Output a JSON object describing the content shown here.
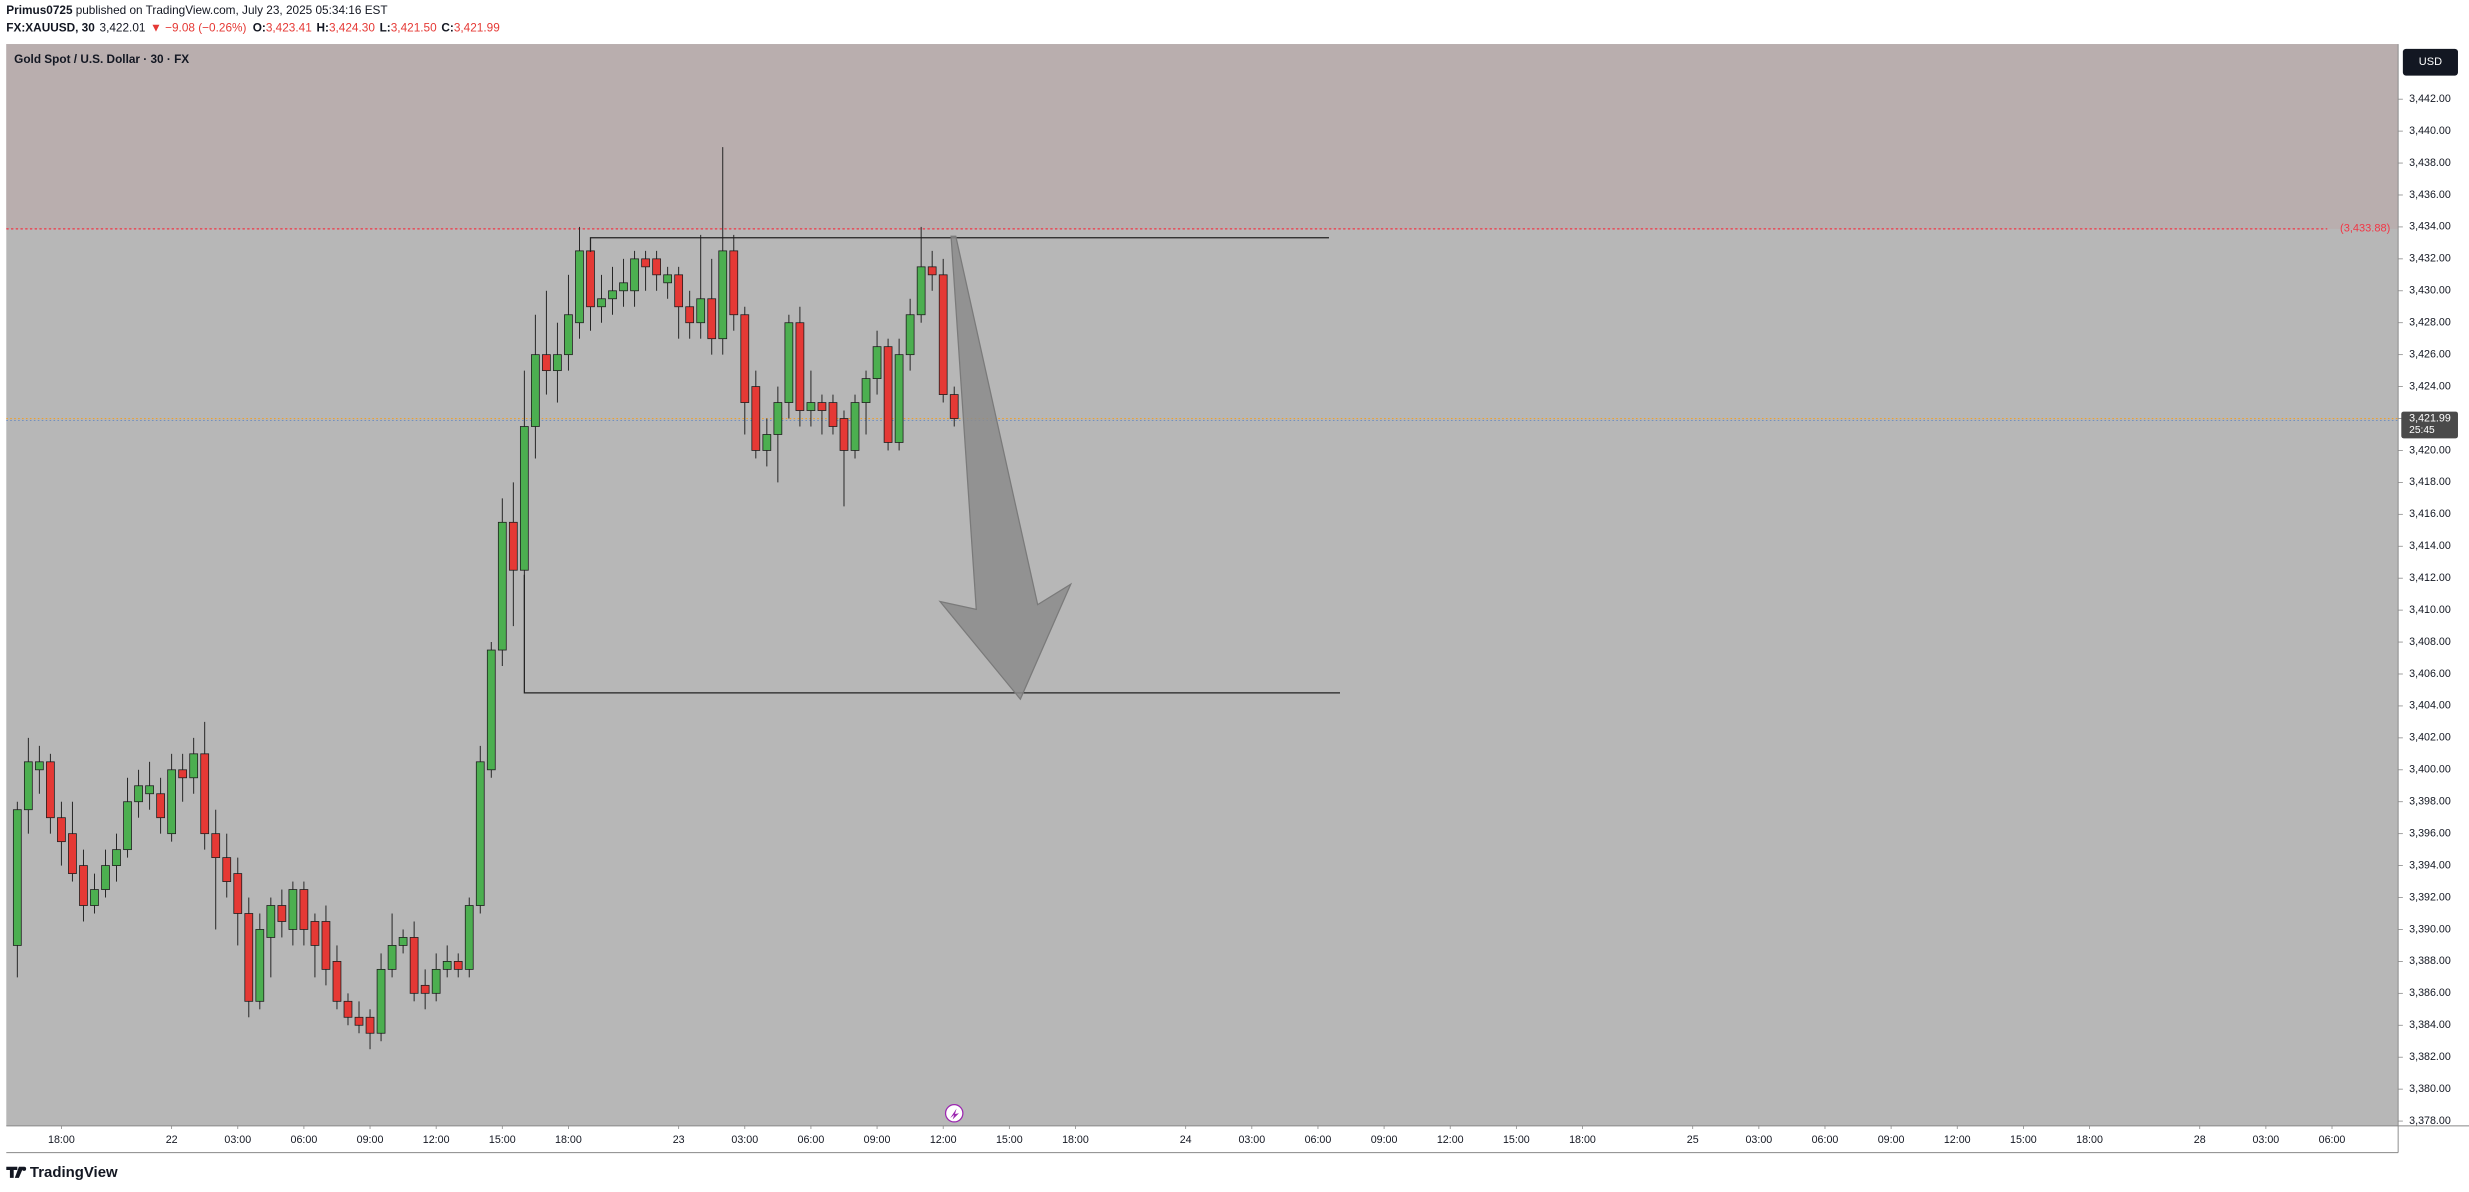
{
  "header": {
    "publisher": "Primus0725",
    "published": "published on TradingView.com, July 23, 2025 05:34:16 EST",
    "symbol": "FX:XAUUSD, 30",
    "last": "3,422.01",
    "change": "▼ −9.08 (−0.26%)",
    "ohlc": [
      {
        "key": "O:",
        "value": "3,423.41"
      },
      {
        "key": "H:",
        "value": "3,424.30"
      },
      {
        "key": "L:",
        "value": "3,421.50"
      },
      {
        "key": "C:",
        "value": "3,421.99"
      }
    ]
  },
  "footer": {
    "brand": "TradingView"
  },
  "chart_data": {
    "type": "candlestick",
    "title": "Gold Spot / U.S. Dollar · 30 · FX",
    "currency": "USD",
    "x": [
      0,
      1,
      2,
      3,
      4,
      5,
      6,
      7,
      8,
      9,
      10,
      11,
      12,
      13,
      14,
      15,
      16,
      17,
      18,
      19,
      20,
      21,
      22,
      23,
      24,
      25,
      26,
      27,
      28,
      29,
      30,
      31,
      32,
      33,
      34,
      35,
      36,
      37,
      38,
      39,
      40,
      41,
      42,
      43,
      44,
      45,
      46,
      47,
      48,
      49,
      50,
      51,
      52,
      53,
      54,
      55,
      56,
      57,
      58,
      59,
      60,
      61,
      62,
      63,
      64,
      65,
      66,
      67,
      68,
      69,
      70,
      71,
      72,
      73,
      74,
      75,
      76,
      77,
      78,
      79,
      80,
      81,
      82,
      83,
      84,
      85
    ],
    "open": [
      3389,
      3397.5,
      3400,
      3400.5,
      3397,
      3396,
      3394,
      3391.5,
      3392.5,
      3394,
      3395,
      3398,
      3398.5,
      3398.5,
      3396,
      3400,
      3399.5,
      3401,
      3396,
      3394.5,
      3393.5,
      3391,
      3385.5,
      3389.5,
      3391.5,
      3390,
      3392.5,
      3390.5,
      3390.5,
      3388,
      3385.5,
      3384.5,
      3384.5,
      3383.5,
      3387.5,
      3389,
      3389.5,
      3386.5,
      3386,
      3387.5,
      3388,
      3387.5,
      3391.5,
      3400,
      3407.5,
      3415.5,
      3412.5,
      3421.5,
      3426,
      3425,
      3426,
      3428,
      3432.5,
      3429,
      3429.5,
      3430,
      3430,
      3432,
      3432,
      3430.5,
      3431,
      3429,
      3428,
      3429.5,
      3427,
      3432.5,
      3428.5,
      3424,
      3420,
      3421,
      3423,
      3428,
      3422.5,
      3423,
      3423,
      3422,
      3420,
      3423,
      3424.5,
      3426.5,
      3420.5,
      3426,
      3428.5,
      3431.5,
      3431,
      3423.5
    ],
    "high": [
      3398,
      3402,
      3401.5,
      3401,
      3398,
      3398,
      3395,
      3393.5,
      3395,
      3396,
      3399.5,
      3400,
      3400.5,
      3399.5,
      3401,
      3401,
      3402,
      3403,
      3397.5,
      3396,
      3394.5,
      3392,
      3391,
      3392,
      3392.5,
      3393,
      3393,
      3391,
      3391.5,
      3389,
      3386,
      3385.5,
      3385,
      3388.5,
      3391,
      3390,
      3390.5,
      3387.5,
      3388.5,
      3389,
      3388.5,
      3392,
      3401.5,
      3408,
      3417,
      3418,
      3425,
      3428.5,
      3430,
      3428,
      3431,
      3434,
      3433,
      3431,
      3431.5,
      3432,
      3432.5,
      3432.5,
      3432.5,
      3431.5,
      3431.5,
      3430,
      3433.5,
      3432,
      3439,
      3433.5,
      3429,
      3425,
      3422,
      3424,
      3428.5,
      3429,
      3425,
      3423.5,
      3423.5,
      3422.5,
      3423.5,
      3425,
      3427.5,
      3427,
      3427,
      3429.5,
      3434,
      3432.5,
      3432,
      3424
    ],
    "low": [
      3387,
      3396,
      3398.5,
      3396,
      3394,
      3393,
      3390.5,
      3391,
      3392,
      3393,
      3394.5,
      3397,
      3397.5,
      3396,
      3395.5,
      3398,
      3398.5,
      3395,
      3390,
      3392,
      3389,
      3384.5,
      3385,
      3387,
      3389.5,
      3389,
      3389,
      3387,
      3386.5,
      3385,
      3384,
      3383.5,
      3382.5,
      3383,
      3387,
      3388.5,
      3385.5,
      3385,
      3385.5,
      3387,
      3387,
      3387,
      3391,
      3399.5,
      3406.5,
      3409,
      3410,
      3419.5,
      3423.5,
      3423,
      3425,
      3427,
      3427.5,
      3428,
      3428.5,
      3429,
      3429,
      3430,
      3430,
      3429.5,
      3427,
      3427,
      3427,
      3426,
      3426,
      3427.5,
      3421,
      3419.5,
      3419,
      3418,
      3422,
      3421.5,
      3421.5,
      3421,
      3421,
      3416.5,
      3419.5,
      3421,
      3423.5,
      3420,
      3420,
      3425,
      3428,
      3430,
      3423,
      3421.5
    ],
    "close": [
      3397.5,
      3400.5,
      3400.5,
      3397,
      3395.5,
      3393.5,
      3391.5,
      3392.5,
      3394,
      3395,
      3398,
      3399,
      3399,
      3397,
      3400,
      3399.5,
      3401,
      3396,
      3394.5,
      3393,
      3391,
      3385.5,
      3390,
      3391.5,
      3390.5,
      3392.5,
      3390,
      3389,
      3387.5,
      3385.5,
      3384.5,
      3384,
      3383.5,
      3387.5,
      3389,
      3389.5,
      3386,
      3386,
      3387.5,
      3388,
      3387.5,
      3391.5,
      3400.5,
      3407.5,
      3415.5,
      3412.5,
      3421.5,
      3426,
      3425,
      3426,
      3428.5,
      3432.5,
      3429,
      3429.5,
      3430,
      3430.5,
      3432,
      3431.5,
      3431,
      3431,
      3429,
      3428,
      3429.5,
      3427,
      3432.5,
      3428.5,
      3423,
      3420,
      3421,
      3423,
      3428,
      3422.5,
      3423,
      3422.5,
      3421.5,
      3420,
      3423,
      3424.5,
      3426.5,
      3420.5,
      3426,
      3428.5,
      3431.5,
      3431,
      3423.5,
      3422
    ],
    "colors": {
      "up": "#4caf50",
      "down": "#e53935"
    },
    "xlim": [
      -1,
      216
    ],
    "xticks": [
      {
        "value": 4,
        "label": "18:00"
      },
      {
        "value": 14,
        "label": "22"
      },
      {
        "value": 20,
        "label": "03:00"
      },
      {
        "value": 26,
        "label": "06:00"
      },
      {
        "value": 32,
        "label": "09:00"
      },
      {
        "value": 38,
        "label": "12:00"
      },
      {
        "value": 44,
        "label": "15:00"
      },
      {
        "value": 50,
        "label": "18:00"
      },
      {
        "value": 60,
        "label": "23"
      },
      {
        "value": 66,
        "label": "03:00"
      },
      {
        "value": 72,
        "label": "06:00"
      },
      {
        "value": 78,
        "label": "09:00"
      },
      {
        "value": 84,
        "label": "12:00"
      },
      {
        "value": 90,
        "label": "15:00"
      },
      {
        "value": 96,
        "label": "18:00"
      },
      {
        "value": 106,
        "label": "24"
      },
      {
        "value": 112,
        "label": "03:00"
      },
      {
        "value": 118,
        "label": "06:00"
      },
      {
        "value": 124,
        "label": "09:00"
      },
      {
        "value": 130,
        "label": "12:00"
      },
      {
        "value": 136,
        "label": "15:00"
      },
      {
        "value": 142,
        "label": "18:00"
      },
      {
        "value": 152,
        "label": "25"
      },
      {
        "value": 158,
        "label": "03:00"
      },
      {
        "value": 164,
        "label": "06:00"
      },
      {
        "value": 170,
        "label": "09:00"
      },
      {
        "value": 176,
        "label": "12:00"
      },
      {
        "value": 182,
        "label": "15:00"
      },
      {
        "value": 188,
        "label": "18:00"
      },
      {
        "value": 198,
        "label": "28"
      },
      {
        "value": 204,
        "label": "03:00"
      },
      {
        "value": 210,
        "label": "06:00"
      }
    ],
    "ylim": [
      3377.7,
      3445.45
    ],
    "yticks": [
      {
        "value": 3378,
        "label": "3,378.00"
      },
      {
        "value": 3380,
        "label": "3,380.00"
      },
      {
        "value": 3382,
        "label": "3,382.00"
      },
      {
        "value": 3384,
        "label": "3,384.00"
      },
      {
        "value": 3386,
        "label": "3,386.00"
      },
      {
        "value": 3388,
        "label": "3,388.00"
      },
      {
        "value": 3390,
        "label": "3,390.00"
      },
      {
        "value": 3392,
        "label": "3,392.00"
      },
      {
        "value": 3394,
        "label": "3,394.00"
      },
      {
        "value": 3396,
        "label": "3,396.00"
      },
      {
        "value": 3398,
        "label": "3,398.00"
      },
      {
        "value": 3400,
        "label": "3,400.00"
      },
      {
        "value": 3402,
        "label": "3,402.00"
      },
      {
        "value": 3404,
        "label": "3,404.00"
      },
      {
        "value": 3406,
        "label": "3,406.00"
      },
      {
        "value": 3408,
        "label": "3,408.00"
      },
      {
        "value": 3410,
        "label": "3,410.00"
      },
      {
        "value": 3412,
        "label": "3,412.00"
      },
      {
        "value": 3414,
        "label": "3,414.00"
      },
      {
        "value": 3416,
        "label": "3,416.00"
      },
      {
        "value": 3418,
        "label": "3,418.00"
      },
      {
        "value": 3420,
        "label": "3,420.00"
      },
      {
        "value": 3422,
        "label": "3,422.00"
      },
      {
        "value": 3424,
        "label": "3,424.00"
      },
      {
        "value": 3426,
        "label": "3,426.00"
      },
      {
        "value": 3428,
        "label": "3,428.00"
      },
      {
        "value": 3430,
        "label": "3,430.00"
      },
      {
        "value": 3432,
        "label": "3,432.00"
      },
      {
        "value": 3434,
        "label": "3,434.00"
      },
      {
        "value": 3436,
        "label": "3,436.00"
      },
      {
        "value": 3438,
        "label": "3,438.00"
      },
      {
        "value": 3440,
        "label": "3,440.00"
      },
      {
        "value": 3442,
        "label": "3,442.00"
      }
    ],
    "alert_line": {
      "value": 3433.88,
      "label": "(3,433.88)"
    },
    "last_price": {
      "value": 3421.99,
      "label": "3,421.99"
    },
    "countdown": "25:45"
  }
}
